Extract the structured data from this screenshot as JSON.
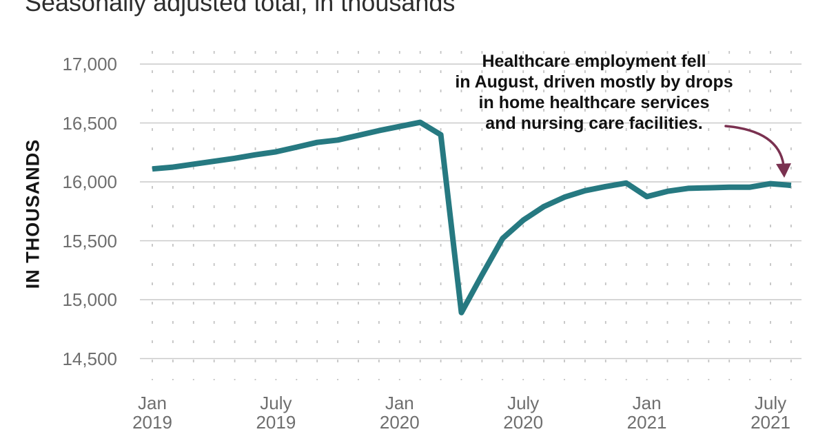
{
  "title": "Seasonally adjusted total, in thousands",
  "y_axis_title": "IN THOUSANDS",
  "annotation": {
    "text": "Healthcare employment fell\nin August, driven mostly by drops\nin home healthcare services\nand nursing care facilities."
  },
  "colors": {
    "line": "#267981",
    "arrow": "#7a3150",
    "gridline": "#c9c9c9",
    "minor_dash": "#c3c3c3",
    "tick_label": "#6e6e6e",
    "title_text": "#2e2e2e",
    "annotation_text": "#111111"
  },
  "chart_data": {
    "type": "line",
    "title": "Seasonally adjusted total, in thousands",
    "xlabel": "",
    "ylabel": "IN THOUSANDS",
    "ylim": [
      14500,
      17000
    ],
    "yticks": [
      "17,000",
      "16,500",
      "16,000",
      "15,500",
      "15,000",
      "14,500"
    ],
    "ytick_values": [
      17000,
      16500,
      16000,
      15500,
      15000,
      14500
    ],
    "xticks": [
      {
        "month": "Jan",
        "year": "2019",
        "index": 0
      },
      {
        "month": "July",
        "year": "2019",
        "index": 6
      },
      {
        "month": "Jan",
        "year": "2020",
        "index": 12
      },
      {
        "month": "July",
        "year": "2020",
        "index": 18
      },
      {
        "month": "Jan",
        "year": "2021",
        "index": 24
      },
      {
        "month": "July",
        "year": "2021",
        "index": 30
      }
    ],
    "x": [
      "Jan 2019",
      "Feb 2019",
      "Mar 2019",
      "Apr 2019",
      "May 2019",
      "Jun 2019",
      "Jul 2019",
      "Aug 2019",
      "Sep 2019",
      "Oct 2019",
      "Nov 2019",
      "Dec 2019",
      "Jan 2020",
      "Feb 2020",
      "Mar 2020",
      "Apr 2020",
      "May 2020",
      "Jun 2020",
      "Jul 2020",
      "Aug 2020",
      "Sep 2020",
      "Oct 2020",
      "Nov 2020",
      "Dec 2020",
      "Jan 2021",
      "Feb 2021",
      "Mar 2021",
      "Apr 2021",
      "May 2021",
      "Jun 2021",
      "Jul 2021",
      "Aug 2021"
    ],
    "series": [
      {
        "name": "Healthcare employment, seasonally adjusted (thousands)",
        "values": [
          16110,
          16125,
          16150,
          16175,
          16200,
          16230,
          16255,
          16295,
          16335,
          16355,
          16395,
          16435,
          16470,
          16505,
          16400,
          14890,
          15210,
          15520,
          15675,
          15790,
          15870,
          15925,
          15960,
          15990,
          15875,
          15920,
          15945,
          15950,
          15955,
          15955,
          15985,
          15970
        ]
      }
    ],
    "grid": "horizontal solid major lines; vertical dashed monthly minor lines",
    "legend": "none"
  }
}
